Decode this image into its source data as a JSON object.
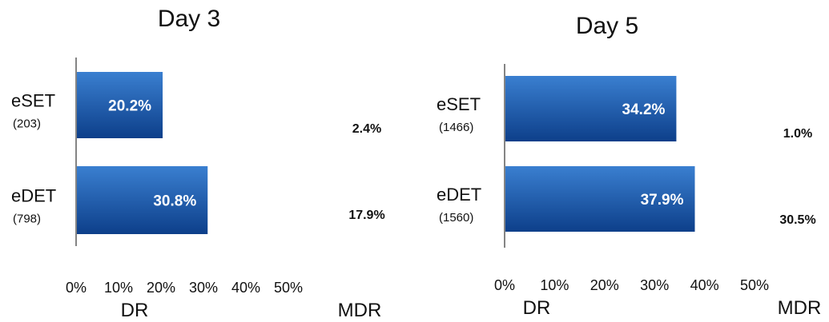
{
  "colors": {
    "bar_top": "#3a7fd0",
    "bar_bottom": "#0d3f8a",
    "axis": "#333333"
  },
  "chart_data": [
    {
      "type": "bar",
      "orientation": "horizontal",
      "title": "Day 3",
      "categories": [
        "eSET",
        "eDET"
      ],
      "category_counts": [
        "(203)",
        "(798)"
      ],
      "values": [
        20.2,
        30.8
      ],
      "value_labels": [
        "20.2%",
        "30.8%"
      ],
      "xlim": [
        0,
        50
      ],
      "xticks": [
        "0%",
        "10%",
        "20%",
        "30%",
        "40%",
        "50%"
      ],
      "mdr_values": [
        2.4,
        17.9
      ],
      "mdr_labels": [
        "2.4%",
        "17.9%"
      ],
      "footer_left": "DR",
      "footer_right": "MDR"
    },
    {
      "type": "bar",
      "orientation": "horizontal",
      "title": "Day 5",
      "categories": [
        "eSET",
        "eDET"
      ],
      "category_counts": [
        "(1466)",
        "(1560)"
      ],
      "values": [
        34.2,
        37.9
      ],
      "value_labels": [
        "34.2%",
        "37.9%"
      ],
      "xlim": [
        0,
        50
      ],
      "xticks": [
        "0%",
        "10%",
        "20%",
        "30%",
        "40%",
        "50%"
      ],
      "mdr_values": [
        1.0,
        30.5
      ],
      "mdr_labels": [
        "1.0%",
        "30.5%"
      ],
      "footer_left": "DR",
      "footer_right": "MDR"
    }
  ]
}
